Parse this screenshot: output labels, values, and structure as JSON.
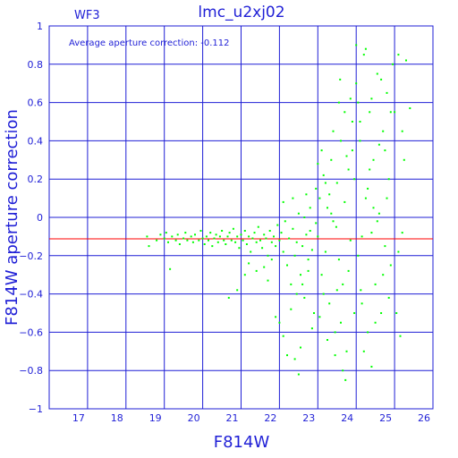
{
  "chart_data": {
    "type": "scatter",
    "title": "lmc_u2xj02",
    "chip_label": "WF3",
    "annotation": "Average aperture correction:  -0.112",
    "xlabel": "F814W",
    "ylabel": "F814W aperture correction",
    "xlim": [
      16,
      26
    ],
    "ylim": [
      -1,
      1
    ],
    "x_ticks": [
      "17",
      "18",
      "19",
      "20",
      "21",
      "22",
      "23",
      "24",
      "25",
      "26"
    ],
    "y_ticks": [
      "−1",
      "−0.8",
      "−0.6",
      "−0.4",
      "−0.2",
      "0",
      "0.2",
      "0.4",
      "0.6",
      "0.8",
      "1"
    ],
    "grid": true,
    "reference_line": {
      "y": -0.112,
      "color": "#ff0000"
    },
    "colors": {
      "axis": "#1f1fd6",
      "grid": "#1f1fd6",
      "points": "#00ff00",
      "reference": "#ff0000"
    },
    "series": [
      {
        "points": [
          [
            18.55,
            -0.1
          ],
          [
            18.6,
            -0.15
          ],
          [
            18.8,
            -0.12
          ],
          [
            18.9,
            -0.09
          ],
          [
            19.0,
            -0.11
          ],
          [
            19.05,
            -0.08
          ],
          [
            19.1,
            -0.13
          ],
          [
            19.15,
            -0.27
          ],
          [
            19.2,
            -0.1
          ],
          [
            19.3,
            -0.12
          ],
          [
            19.35,
            -0.09
          ],
          [
            19.4,
            -0.14
          ],
          [
            19.5,
            -0.11
          ],
          [
            19.55,
            -0.08
          ],
          [
            19.6,
            -0.12
          ],
          [
            19.7,
            -0.1
          ],
          [
            19.75,
            -0.13
          ],
          [
            19.8,
            -0.09
          ],
          [
            19.9,
            -0.12
          ],
          [
            19.95,
            -0.07
          ],
          [
            20.0,
            -0.11
          ],
          [
            20.05,
            -0.14
          ],
          [
            20.1,
            -0.1
          ],
          [
            20.15,
            -0.12
          ],
          [
            20.2,
            -0.08
          ],
          [
            20.25,
            -0.15
          ],
          [
            20.3,
            -0.11
          ],
          [
            20.35,
            -0.09
          ],
          [
            20.4,
            -0.13
          ],
          [
            20.45,
            -0.1
          ],
          [
            20.5,
            -0.07
          ],
          [
            20.55,
            -0.12
          ],
          [
            20.6,
            -0.14
          ],
          [
            20.65,
            -0.1
          ],
          [
            20.7,
            -0.08
          ],
          [
            20.75,
            -0.12
          ],
          [
            20.8,
            -0.06
          ],
          [
            20.85,
            -0.13
          ],
          [
            20.9,
            -0.1
          ],
          [
            20.95,
            -0.16
          ],
          [
            21.0,
            -0.09
          ],
          [
            21.05,
            -0.12
          ],
          [
            21.1,
            -0.07
          ],
          [
            21.15,
            -0.14
          ],
          [
            21.2,
            -0.1
          ],
          [
            21.25,
            -0.18
          ],
          [
            21.3,
            -0.11
          ],
          [
            21.35,
            -0.08
          ],
          [
            21.4,
            -0.13
          ],
          [
            21.45,
            -0.05
          ],
          [
            21.5,
            -0.12
          ],
          [
            21.55,
            -0.16
          ],
          [
            21.6,
            -0.09
          ],
          [
            21.65,
            -0.11
          ],
          [
            21.7,
            -0.2
          ],
          [
            21.75,
            -0.07
          ],
          [
            21.8,
            -0.13
          ],
          [
            21.85,
            -0.1
          ],
          [
            21.9,
            -0.15
          ],
          [
            21.95,
            -0.04
          ],
          [
            20.68,
            -0.42
          ],
          [
            20.9,
            -0.38
          ],
          [
            21.1,
            -0.3
          ],
          [
            21.2,
            -0.24
          ],
          [
            21.4,
            -0.28
          ],
          [
            21.6,
            -0.26
          ],
          [
            21.7,
            -0.33
          ],
          [
            21.8,
            -0.22
          ],
          [
            22.0,
            -0.12
          ],
          [
            22.05,
            -0.08
          ],
          [
            22.1,
            -0.18
          ],
          [
            22.15,
            -0.02
          ],
          [
            22.2,
            -0.25
          ],
          [
            22.25,
            -0.11
          ],
          [
            22.3,
            -0.35
          ],
          [
            22.35,
            -0.06
          ],
          [
            22.4,
            -0.2
          ],
          [
            22.45,
            -0.13
          ],
          [
            22.5,
            0.02
          ],
          [
            22.55,
            -0.3
          ],
          [
            22.6,
            -0.15
          ],
          [
            22.65,
            -0.42
          ],
          [
            22.7,
            -0.09
          ],
          [
            22.75,
            -0.22
          ],
          [
            22.8,
            0.05
          ],
          [
            22.85,
            -0.17
          ],
          [
            22.9,
            -0.5
          ],
          [
            22.95,
            -0.03
          ],
          [
            22.0,
            -0.55
          ],
          [
            22.1,
            -0.62
          ],
          [
            22.3,
            -0.48
          ],
          [
            22.45,
            -0.4
          ],
          [
            22.55,
            -0.68
          ],
          [
            22.6,
            -0.35
          ],
          [
            22.75,
            -0.28
          ],
          [
            22.85,
            -0.58
          ],
          [
            21.9,
            -0.52
          ],
          [
            22.4,
            -0.74
          ],
          [
            22.2,
            -0.72
          ],
          [
            22.1,
            0.08
          ],
          [
            22.35,
            0.1
          ],
          [
            22.7,
            0.12
          ],
          [
            22.95,
            0.15
          ],
          [
            22.5,
            -0.82
          ],
          [
            23.0,
            -0.1
          ],
          [
            23.05,
            0.1
          ],
          [
            23.1,
            -0.3
          ],
          [
            23.15,
            0.22
          ],
          [
            23.2,
            -0.18
          ],
          [
            23.25,
            0.05
          ],
          [
            23.3,
            -0.45
          ],
          [
            23.35,
            0.3
          ],
          [
            23.4,
            -0.02
          ],
          [
            23.45,
            -0.6
          ],
          [
            23.5,
            0.18
          ],
          [
            23.55,
            -0.22
          ],
          [
            23.6,
            0.4
          ],
          [
            23.65,
            -0.35
          ],
          [
            23.7,
            0.08
          ],
          [
            23.75,
            -0.7
          ],
          [
            23.8,
            0.25
          ],
          [
            23.85,
            -0.12
          ],
          [
            23.9,
            0.5
          ],
          [
            23.95,
            -0.5
          ],
          [
            23.0,
            0.28
          ],
          [
            23.1,
            0.35
          ],
          [
            23.2,
            0.18
          ],
          [
            23.3,
            0.12
          ],
          [
            23.4,
            0.45
          ],
          [
            23.5,
            -0.38
          ],
          [
            23.6,
            -0.55
          ],
          [
            23.7,
            0.55
          ],
          [
            23.8,
            -0.28
          ],
          [
            23.9,
            0.35
          ],
          [
            23.05,
            -0.52
          ],
          [
            23.25,
            -0.64
          ],
          [
            23.45,
            -0.72
          ],
          [
            23.65,
            -0.8
          ],
          [
            23.15,
            -0.4
          ],
          [
            23.35,
            0.02
          ],
          [
            23.55,
            0.6
          ],
          [
            23.75,
            0.32
          ],
          [
            23.85,
            0.62
          ],
          [
            23.95,
            0.2
          ],
          [
            24.0,
            0.7
          ],
          [
            24.05,
            -0.2
          ],
          [
            24.1,
            0.4
          ],
          [
            24.15,
            -0.45
          ],
          [
            24.2,
            0.85
          ],
          [
            24.25,
            0.1
          ],
          [
            24.3,
            -0.6
          ],
          [
            24.35,
            0.55
          ],
          [
            24.4,
            -0.08
          ],
          [
            24.45,
            0.3
          ],
          [
            24.5,
            -0.35
          ],
          [
            24.55,
            0.75
          ],
          [
            24.6,
            0.02
          ],
          [
            24.65,
            -0.5
          ],
          [
            24.7,
            0.45
          ],
          [
            24.75,
            -0.15
          ],
          [
            24.8,
            0.65
          ],
          [
            24.85,
            0.2
          ],
          [
            24.9,
            -0.25
          ],
          [
            24.95,
            0.8
          ],
          [
            24.1,
            0.5
          ],
          [
            24.2,
            -0.7
          ],
          [
            24.3,
            0.15
          ],
          [
            24.4,
            0.62
          ],
          [
            24.5,
            -0.55
          ],
          [
            24.6,
            0.38
          ],
          [
            24.7,
            -0.3
          ],
          [
            24.8,
            0.1
          ],
          [
            24.0,
            0.9
          ],
          [
            24.25,
            0.88
          ],
          [
            24.4,
            -0.78
          ],
          [
            24.65,
            0.72
          ],
          [
            24.15,
            -0.1
          ],
          [
            24.35,
            0.25
          ],
          [
            24.55,
            -0.02
          ],
          [
            24.75,
            0.35
          ],
          [
            24.85,
            -0.42
          ],
          [
            24.9,
            0.55
          ],
          [
            24.05,
            0.6
          ],
          [
            24.45,
            0.05
          ],
          [
            25.0,
            0.55
          ],
          [
            25.1,
            0.85
          ],
          [
            25.2,
            -0.08
          ],
          [
            25.3,
            0.82
          ],
          [
            25.4,
            0.57
          ],
          [
            25.05,
            -0.5
          ],
          [
            25.15,
            -0.62
          ],
          [
            25.25,
            0.3
          ],
          [
            25.1,
            -0.18
          ],
          [
            25.2,
            0.45
          ],
          [
            23.72,
            -0.85
          ],
          [
            24.12,
            -0.38
          ],
          [
            23.58,
            0.72
          ],
          [
            23.48,
            -0.05
          ],
          [
            22.65,
            0.0
          ],
          [
            22.8,
            -0.07
          ]
        ]
      }
    ]
  }
}
